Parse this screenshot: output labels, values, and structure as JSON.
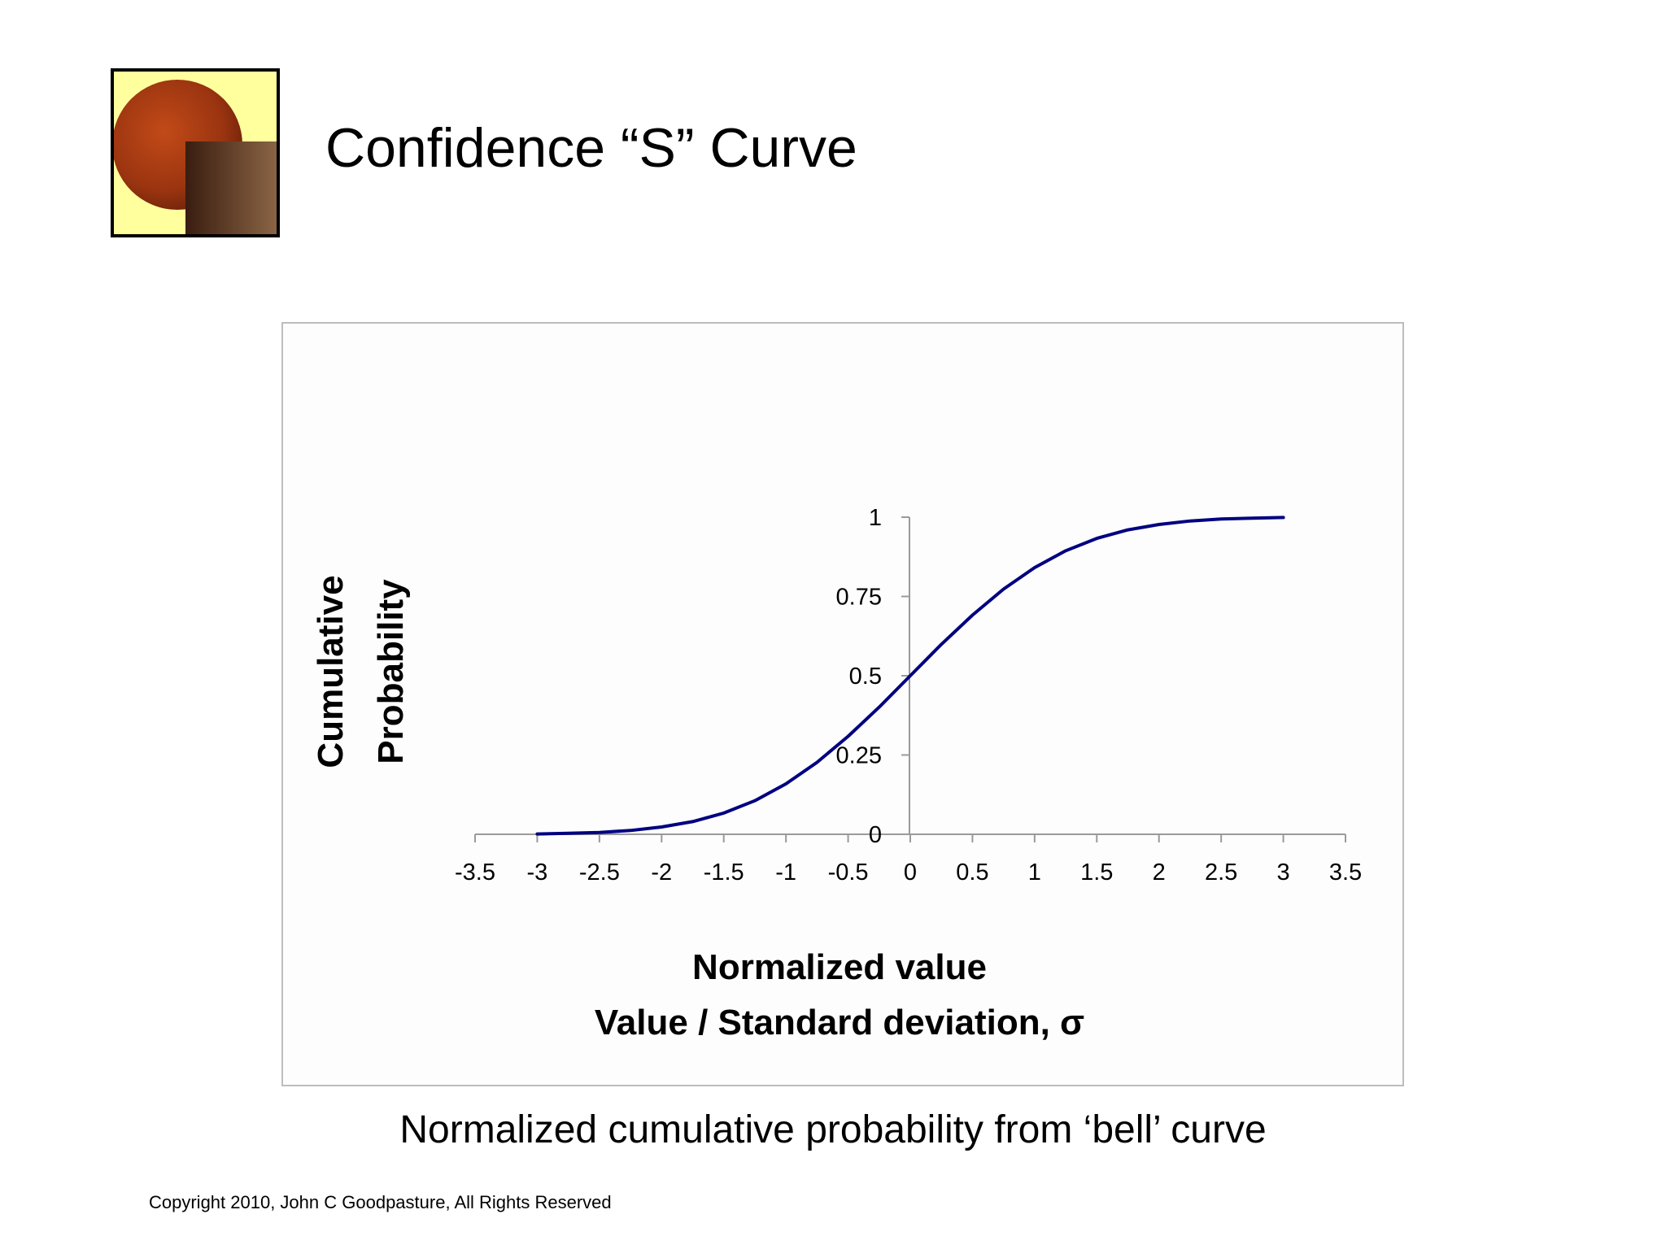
{
  "slide": {
    "title": "Confidence “S” Curve",
    "caption": "Normalized cumulative probability from ‘bell’ curve",
    "copyright": "Copyright 2010, John C Goodpasture, All Rights Reserved"
  },
  "colors": {
    "curve": "#000080",
    "axis": "#9a9a9a",
    "logo_background": "#ffff9e",
    "logo_circle": "#a83a12",
    "logo_square_dark": "#3a1d10",
    "logo_square_light": "#8a6444"
  },
  "chart_data": {
    "type": "line",
    "title": "",
    "xlabel": "Normalized value",
    "xlabel2": "Value / Standard deviation, σ",
    "ylabel": "Cumulative",
    "ylabel2": "Probability",
    "xlim": [
      -3.5,
      3.5
    ],
    "ylim": [
      0,
      1
    ],
    "x_ticks": [
      "-3.5",
      "-3",
      "-2.5",
      "-2",
      "-1.5",
      "-1",
      "-0.5",
      "0",
      "0.5",
      "1",
      "1.5",
      "2",
      "2.5",
      "3",
      "3.5"
    ],
    "y_ticks": [
      "0",
      "0.25",
      "0.5",
      "0.75",
      "1"
    ],
    "grid": false,
    "legend": "none",
    "series": [
      {
        "x": [
          -3,
          -2.75,
          -2.5,
          -2.25,
          -2,
          -1.75,
          -1.5,
          -1.25,
          -1,
          -0.75,
          -0.5,
          -0.25,
          0,
          0.25,
          0.5,
          0.75,
          1,
          1.25,
          1.5,
          1.75,
          2,
          2.25,
          2.5,
          2.75,
          3
        ],
        "y": [
          0.001,
          0.003,
          0.006,
          0.012,
          0.023,
          0.04,
          0.067,
          0.106,
          0.159,
          0.227,
          0.309,
          0.401,
          0.5,
          0.599,
          0.691,
          0.773,
          0.841,
          0.894,
          0.933,
          0.96,
          0.977,
          0.988,
          0.994,
          0.997,
          0.999
        ]
      }
    ]
  }
}
